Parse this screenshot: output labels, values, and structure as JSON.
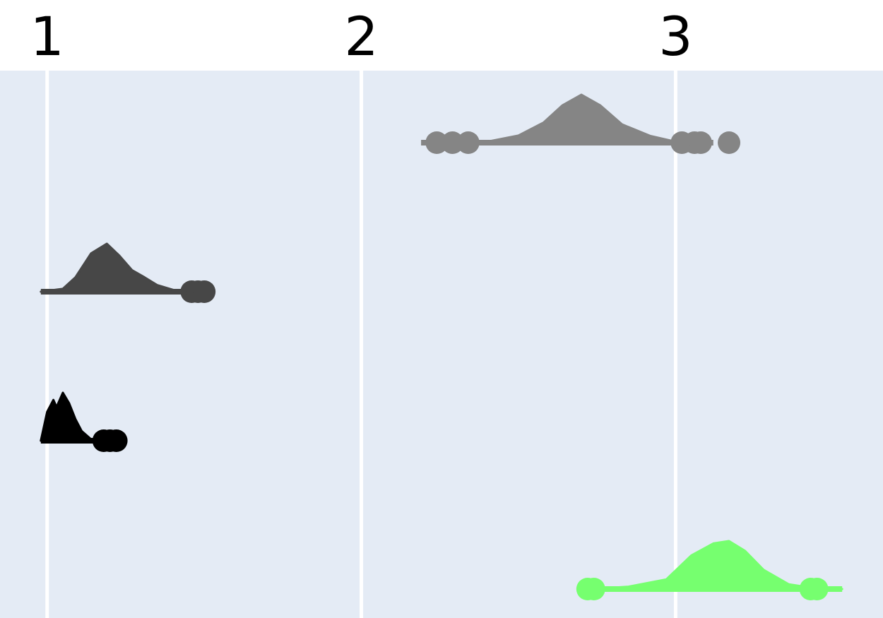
{
  "chart_data": {
    "type": "violin",
    "title": "",
    "xlabel": "",
    "ylabel": "",
    "xlim": [
      0.85,
      3.66
    ],
    "x_ticks": [
      1,
      2,
      3
    ],
    "x_tick_labels": [
      "1",
      "2",
      "3"
    ],
    "axis_position": "top",
    "grid": true,
    "legend": "none",
    "colors": {
      "panel": "#e4ebf5",
      "gridline": "#ffffff",
      "background": "#ffffff"
    },
    "series": [
      {
        "color": "#858585",
        "outliers": [
          2.24,
          2.29,
          2.34,
          3.02,
          3.06,
          3.08,
          3.17
        ],
        "whisker": [
          2.19,
          3.12
        ],
        "density": [
          [
            2.3,
            0
          ],
          [
            2.4,
            0.02
          ],
          [
            2.5,
            0.15
          ],
          [
            2.58,
            0.42
          ],
          [
            2.64,
            0.78
          ],
          [
            2.7,
            1.0
          ],
          [
            2.76,
            0.78
          ],
          [
            2.83,
            0.38
          ],
          [
            2.92,
            0.14
          ],
          [
            3.0,
            0.02
          ],
          [
            3.08,
            0
          ]
        ]
      },
      {
        "color": "#474747",
        "outliers": [
          1.46,
          1.48,
          1.5
        ],
        "whisker": [
          0.98,
          1.53
        ],
        "density": [
          [
            0.98,
            0
          ],
          [
            1.05,
            0.06
          ],
          [
            1.09,
            0.3
          ],
          [
            1.14,
            0.8
          ],
          [
            1.19,
            1.0
          ],
          [
            1.23,
            0.75
          ],
          [
            1.27,
            0.45
          ],
          [
            1.31,
            0.3
          ],
          [
            1.35,
            0.14
          ],
          [
            1.41,
            0.02
          ],
          [
            1.46,
            0
          ]
        ]
      },
      {
        "color": "#000000",
        "outliers": [
          1.18,
          1.2,
          1.22
        ],
        "whisker": [
          0.98,
          1.2
        ],
        "density": [
          [
            0.98,
            0
          ],
          [
            1.0,
            0.6
          ],
          [
            1.02,
            0.85
          ],
          [
            1.03,
            0.7
          ],
          [
            1.05,
            1.0
          ],
          [
            1.07,
            0.78
          ],
          [
            1.09,
            0.45
          ],
          [
            1.11,
            0.2
          ],
          [
            1.14,
            0.03
          ],
          [
            1.17,
            0
          ]
        ]
      },
      {
        "color": "#76ff6f",
        "outliers": [
          2.72,
          2.74,
          3.43,
          3.45
        ],
        "whisker": [
          2.73,
          3.53
        ],
        "density": [
          [
            2.73,
            0
          ],
          [
            2.85,
            0.05
          ],
          [
            2.97,
            0.2
          ],
          [
            3.05,
            0.7
          ],
          [
            3.12,
            0.95
          ],
          [
            3.17,
            1.0
          ],
          [
            3.22,
            0.8
          ],
          [
            3.28,
            0.4
          ],
          [
            3.36,
            0.1
          ],
          [
            3.44,
            0.02
          ],
          [
            3.53,
            0
          ]
        ]
      }
    ]
  }
}
